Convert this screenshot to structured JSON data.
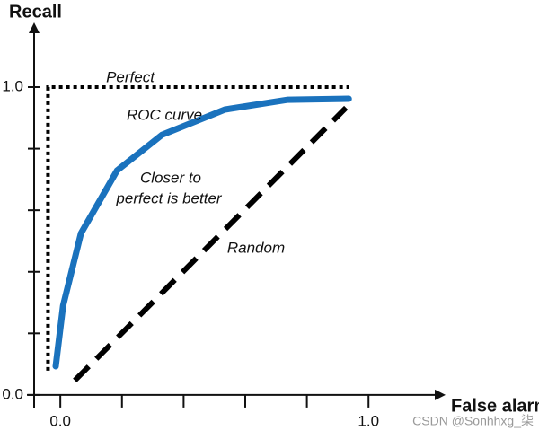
{
  "chart_data": {
    "type": "line",
    "xlabel": "Recall",
    "ylabel": "False alarm",
    "xlim": [
      -0.085,
      1.25
    ],
    "ylim": [
      -0.044,
      1.21
    ],
    "xticks": [
      {
        "value": 0,
        "label": "0.0"
      },
      {
        "value": 1,
        "label": "1.0"
      }
    ],
    "xminorticks": [
      0.2,
      0.4,
      0.6,
      0.8
    ],
    "yticks": [
      {
        "value": 0,
        "label": "0.0"
      },
      {
        "value": 1,
        "label": "1.0"
      }
    ],
    "yminorticks": [
      0.2,
      0.4,
      0.6,
      0.8
    ],
    "series": [
      {
        "color": "#000000",
        "style": "dotted",
        "x": [
          -0.04,
          -0.04,
          0.936
        ],
        "y": [
          0.079,
          1.0,
          1.0
        ]
      },
      {
        "color": "#1a72bd",
        "style": "solid",
        "x": [
          -0.015,
          0.009,
          0.067,
          0.184,
          0.33,
          0.534,
          0.738,
          0.936
        ],
        "y": [
          0.093,
          0.29,
          0.525,
          0.729,
          0.845,
          0.927,
          0.959,
          0.962
        ]
      },
      {
        "color": "#000000",
        "style": "dashed",
        "x": [
          0.047,
          0.927
        ],
        "y": [
          0.047,
          0.933
        ]
      }
    ],
    "annotations": [
      "Perfect",
      "ROC curve",
      "Closer to",
      "perfect is better",
      "Random"
    ],
    "watermark": "CSDN @Sonhhxg_柒"
  }
}
